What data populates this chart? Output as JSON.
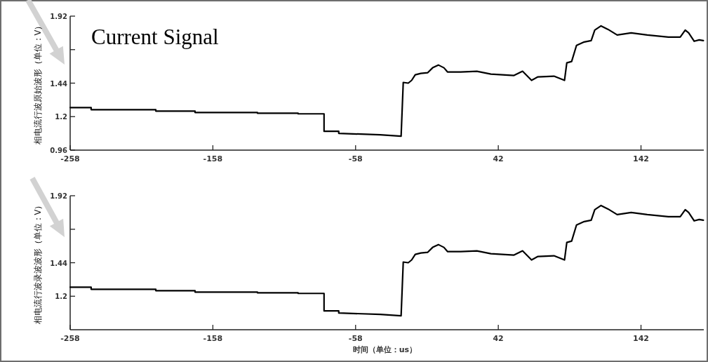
{
  "chart_data": [
    {
      "type": "line",
      "title": "Current Signal",
      "ylabel": "相电流行波原始波形（单位：V）",
      "xlim": [
        -258,
        186
      ],
      "ylim": [
        0.96,
        1.92
      ],
      "xticks": [
        -258,
        -158,
        -58,
        42,
        142
      ],
      "yticks": [
        0.96,
        1.2,
        1.44,
        {
          "value": 1.68,
          "label": null
        },
        1.92
      ],
      "marker": "none",
      "line_style": "solid",
      "grid": false,
      "series": [
        {
          "color": "#000000",
          "x": [
            -258,
            -243.3,
            -243.3,
            -198,
            -198,
            -170.5,
            -170.5,
            -126.8,
            -126.8,
            -98.3,
            -98.3,
            -80.1,
            -80.1,
            -69.8,
            -69.8,
            -40.8,
            -26.1,
            -24.6,
            -21.1,
            -18.7,
            -16.2,
            -12.3,
            -7.4,
            -4,
            0,
            3.9,
            6.4,
            15.7,
            27,
            36.8,
            53,
            59,
            65.3,
            69.8,
            81,
            88.4,
            90,
            93.4,
            96.8,
            102.2,
            107.1,
            109.6,
            114,
            118.9,
            125.3,
            135.1,
            146.4,
            161.2,
            169.5,
            173,
            175.4,
            179.3,
            182.8,
            185.7
          ],
          "values": [
            1.265,
            1.265,
            1.25,
            1.25,
            1.24,
            1.24,
            1.23,
            1.23,
            1.225,
            1.225,
            1.22,
            1.22,
            1.095,
            1.095,
            1.08,
            1.07,
            1.06,
            1.445,
            1.44,
            1.46,
            1.5,
            1.51,
            1.515,
            1.55,
            1.57,
            1.55,
            1.52,
            1.52,
            1.525,
            1.505,
            1.495,
            1.525,
            1.46,
            1.485,
            1.49,
            1.46,
            1.585,
            1.595,
            1.71,
            1.735,
            1.745,
            1.82,
            1.85,
            1.825,
            1.785,
            1.8,
            1.785,
            1.77,
            1.77,
            1.82,
            1.8,
            1.74,
            1.75,
            1.745
          ]
        }
      ]
    },
    {
      "type": "line",
      "ylabel": "相电流行波录波波形（单位：V）",
      "xlabel": "时间（单位：us）",
      "xlim": [
        -258,
        186
      ],
      "ylim": [
        0.96,
        1.92
      ],
      "xticks": [
        -258,
        -158,
        -58,
        42,
        142
      ],
      "yticks": [
        1.2,
        1.44,
        {
          "value": 1.68,
          "label": null
        },
        1.92
      ],
      "marker": "none",
      "line_style": "solid",
      "grid": false,
      "series": [
        {
          "color": "#000000",
          "x": [
            -258,
            -243.3,
            -243.3,
            -198,
            -198,
            -170.5,
            -170.5,
            -126.8,
            -126.8,
            -98.3,
            -98.3,
            -80.1,
            -80.1,
            -69.8,
            -69.8,
            -40.8,
            -26.1,
            -24.6,
            -21.1,
            -18.7,
            -16.2,
            -12.3,
            -7.4,
            -4,
            0,
            3.9,
            6.4,
            15.7,
            27,
            36.8,
            53,
            59,
            65.3,
            69.8,
            81,
            88.4,
            90,
            93.4,
            96.8,
            102.2,
            107.1,
            109.6,
            114,
            118.9,
            125.3,
            135.1,
            146.4,
            161.2,
            169.5,
            173,
            175.4,
            179.3,
            182.8,
            185.7
          ],
          "values": [
            1.265,
            1.265,
            1.25,
            1.25,
            1.24,
            1.24,
            1.23,
            1.23,
            1.225,
            1.225,
            1.22,
            1.22,
            1.095,
            1.095,
            1.08,
            1.07,
            1.06,
            1.445,
            1.44,
            1.46,
            1.5,
            1.51,
            1.515,
            1.55,
            1.57,
            1.55,
            1.52,
            1.52,
            1.525,
            1.505,
            1.495,
            1.525,
            1.46,
            1.485,
            1.49,
            1.46,
            1.585,
            1.595,
            1.71,
            1.735,
            1.745,
            1.82,
            1.85,
            1.825,
            1.785,
            1.8,
            1.785,
            1.77,
            1.77,
            1.82,
            1.8,
            1.74,
            1.75,
            1.745
          ]
        }
      ]
    }
  ]
}
